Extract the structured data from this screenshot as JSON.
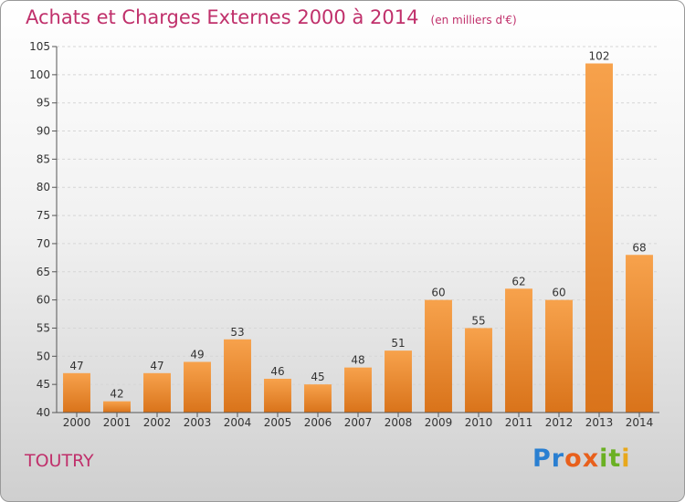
{
  "header": {
    "title": "Achats et Charges Externes 2000 à 2014",
    "unit": "(en milliers d'€)"
  },
  "footer": {
    "place": "TOUTRY",
    "brand_letters": [
      {
        "ch": "P",
        "color": "#2a7fd1"
      },
      {
        "ch": "r",
        "color": "#2a7fd1"
      },
      {
        "ch": "o",
        "color": "#e8601c"
      },
      {
        "ch": "x",
        "color": "#e8601c"
      },
      {
        "ch": "i",
        "color": "#6ab023"
      },
      {
        "ch": "t",
        "color": "#6ab023"
      },
      {
        "ch": "i",
        "color": "#e8a81c"
      }
    ]
  },
  "chart_data": {
    "type": "bar",
    "categories": [
      "2000",
      "2001",
      "2002",
      "2003",
      "2004",
      "2005",
      "2006",
      "2007",
      "2008",
      "2009",
      "2010",
      "2011",
      "2012",
      "2013",
      "2014"
    ],
    "values": [
      47,
      42,
      47,
      49,
      53,
      46,
      45,
      48,
      51,
      60,
      55,
      62,
      60,
      102,
      68
    ],
    "ylim": [
      40,
      105
    ],
    "yticks": [
      40,
      45,
      50,
      55,
      60,
      65,
      70,
      75,
      80,
      85,
      90,
      95,
      100,
      105
    ],
    "grid": true,
    "bar_color": "#f0902a"
  }
}
